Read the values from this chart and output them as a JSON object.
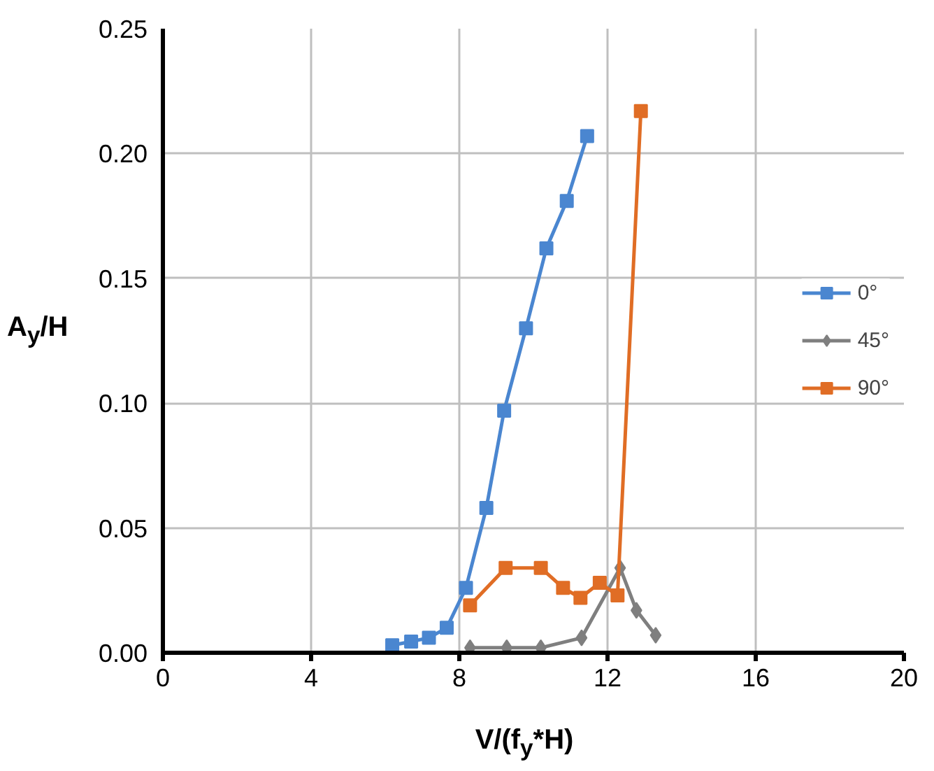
{
  "chart_data": {
    "type": "line",
    "xlabel": "V/(f$_{y}$*H)",
    "ylabel": "A$_{y}$/H",
    "xlim": [
      0,
      20
    ],
    "xticks": [
      0,
      4,
      8,
      12,
      16,
      20
    ],
    "ylim": [
      0,
      0.25
    ],
    "yticks": [
      {
        "value": 0,
        "label": "0.00"
      },
      {
        "value": 0.05,
        "label": "0.05"
      },
      {
        "value": 0.1,
        "label": "0.10"
      },
      {
        "value": 0.15,
        "label": "0.15"
      },
      {
        "value": 0.2,
        "label": "0.20"
      },
      {
        "value": 0.25,
        "label": "0.25"
      }
    ],
    "grid": true,
    "legend": "right",
    "line_style": "solid",
    "series": [
      {
        "name": "0°",
        "color": "#4a86d0",
        "marker": "square",
        "x": [
          6.19,
          6.7,
          7.18,
          7.66,
          8.18,
          8.73,
          9.21,
          9.8,
          10.35,
          10.9,
          11.45
        ],
        "values": [
          0.003,
          0.0045,
          0.006,
          0.01,
          0.026,
          0.058,
          0.097,
          0.13,
          0.162,
          0.181,
          0.207
        ]
      },
      {
        "name": "45°",
        "color": "#7f7f7f",
        "marker": "diamond",
        "x": [
          8.29,
          9.28,
          10.2,
          11.3,
          12.34,
          12.78,
          13.3
        ],
        "values": [
          0.002,
          0.002,
          0.002,
          0.006,
          0.034,
          0.017,
          0.007
        ]
      },
      {
        "name": "90°",
        "color": "#e06d25",
        "marker": "square",
        "x": [
          8.29,
          9.25,
          10.2,
          10.8,
          11.27,
          11.79,
          12.27,
          12.9
        ],
        "values": [
          0.019,
          0.034,
          0.034,
          0.026,
          0.022,
          0.028,
          0.023,
          0.217
        ]
      }
    ]
  }
}
